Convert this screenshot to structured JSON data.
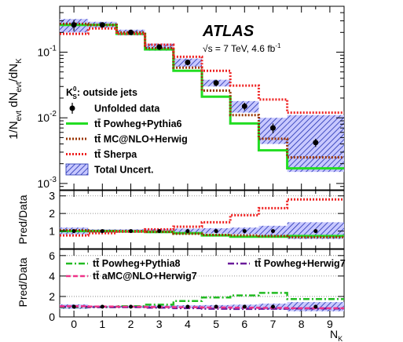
{
  "chart_data": {
    "type": "line",
    "xlabel": "N",
    "xlabel_sub": "K",
    "x_ticks": [
      "0",
      "1",
      "2",
      "3",
      "4",
      "5",
      "6",
      "7",
      "8",
      "9"
    ],
    "xlim": [
      -0.5,
      9.5
    ],
    "bins": [
      [
        -0.5,
        0.5
      ],
      [
        0.5,
        1.5
      ],
      [
        1.5,
        2.5
      ],
      [
        2.5,
        3.5
      ],
      [
        3.5,
        4.5
      ],
      [
        4.5,
        5.5
      ],
      [
        5.5,
        6.5
      ],
      [
        6.5,
        7.5
      ],
      [
        7.5,
        9.5
      ]
    ],
    "atlas_label": "ATLAS",
    "energy_label": "√s = 7 TeV, 4.6 fb",
    "energy_sup": "-1",
    "selection_label": "K",
    "selection_sub": "S",
    "selection_sup": "0",
    "selection_rest": ": outside jets",
    "top": {
      "ylabel": "1/N",
      "ylabel_sub1": "evt",
      "ylabel_mid": " dN",
      "ylabel_sub2": "evt",
      "ylabel_end": "/dN",
      "ylabel_sub3": "K",
      "yscale": "log",
      "ylim": [
        0.0008,
        0.5
      ],
      "ytick_values": [
        0.001,
        0.01,
        0.1
      ],
      "ytick_labels": [
        {
          "base": "10",
          "exp": "-3"
        },
        {
          "base": "10",
          "exp": "-2"
        },
        {
          "base": "10",
          "exp": "-1"
        }
      ],
      "legend": [
        {
          "key": "data",
          "name": "Unfolded data"
        },
        {
          "key": "powheg_pythia6",
          "name": "tt̄ Powheg+Pythia6"
        },
        {
          "key": "mcatnlo_herwig",
          "name": "tt̄ MC@NLO+Herwig"
        },
        {
          "key": "sherpa",
          "name": "tt̄ Sherpa"
        },
        {
          "key": "uncert",
          "name": "Total Uncert."
        }
      ],
      "data_points": [
        {
          "x": 0,
          "y": 0.26,
          "err_lo": 0.05,
          "err_hi": 0.05
        },
        {
          "x": 1,
          "y": 0.26,
          "err_lo": 0.02,
          "err_hi": 0.02
        },
        {
          "x": 2,
          "y": 0.2,
          "err_lo": 0.015,
          "err_hi": 0.015
        },
        {
          "x": 3,
          "y": 0.12,
          "err_lo": 0.012,
          "err_hi": 0.012
        },
        {
          "x": 4,
          "y": 0.07,
          "err_lo": 0.007,
          "err_hi": 0.007
        },
        {
          "x": 5,
          "y": 0.034,
          "err_lo": 0.004,
          "err_hi": 0.004
        },
        {
          "x": 6,
          "y": 0.015,
          "err_lo": 0.002,
          "err_hi": 0.002
        },
        {
          "x": 7,
          "y": 0.007,
          "err_lo": 0.0012,
          "err_hi": 0.0012
        },
        {
          "x": 8.5,
          "y": 0.0042,
          "err_lo": 0.0006,
          "err_hi": 0.0006
        }
      ],
      "uncertainty_band": {
        "lo": [
          0.2,
          0.235,
          0.18,
          0.105,
          0.06,
          0.03,
          0.012,
          0.004,
          0.0015
        ],
        "hi": [
          0.32,
          0.29,
          0.22,
          0.135,
          0.08,
          0.038,
          0.018,
          0.01,
          0.011
        ]
      },
      "series": [
        {
          "key": "powheg_pythia6",
          "name": "tt̄ Powheg+Pythia6",
          "color": "#22dd22",
          "dash": "solid",
          "values": [
            0.26,
            0.26,
            0.19,
            0.11,
            0.052,
            0.021,
            0.0082,
            0.0032,
            0.0017
          ]
        },
        {
          "key": "mcatnlo_herwig",
          "name": "tt̄ MC@NLO+Herwig",
          "color": "#993300",
          "dash": "dotted",
          "values": [
            0.27,
            0.26,
            0.2,
            0.115,
            0.058,
            0.026,
            0.011,
            0.0048,
            0.0025
          ]
        },
        {
          "key": "sherpa",
          "name": "tt̄ Sherpa",
          "color": "#ee2222",
          "dash": "dotted",
          "values": [
            0.19,
            0.23,
            0.19,
            0.13,
            0.085,
            0.052,
            0.031,
            0.019,
            0.012
          ]
        }
      ]
    },
    "ratio1": {
      "ylabel": "Pred/Data",
      "ylim": [
        0,
        3.3
      ],
      "yticks": [
        1,
        2,
        3
      ],
      "dotted_lines": [
        2,
        3
      ],
      "data_points": [
        {
          "x": 0,
          "y": 1
        },
        {
          "x": 1,
          "y": 1
        },
        {
          "x": 2,
          "y": 1
        },
        {
          "x": 3,
          "y": 1
        },
        {
          "x": 4,
          "y": 1
        },
        {
          "x": 5,
          "y": 1
        },
        {
          "x": 6,
          "y": 1
        },
        {
          "x": 7,
          "y": 1
        },
        {
          "x": 8.5,
          "y": 1
        }
      ],
      "uncertainty_band": {
        "lo": [
          0.82,
          0.9,
          0.9,
          0.88,
          0.88,
          0.86,
          0.82,
          0.7,
          0.55
        ],
        "hi": [
          1.2,
          1.1,
          1.1,
          1.12,
          1.14,
          1.16,
          1.2,
          1.3,
          1.5
        ]
      },
      "series": [
        {
          "key": "powheg_pythia6",
          "color": "#22dd22",
          "dash": "solid",
          "values": [
            1.0,
            1.0,
            0.98,
            0.95,
            0.88,
            0.75,
            0.68,
            0.68,
            0.72
          ]
        },
        {
          "key": "mcatnlo_herwig",
          "color": "#993300",
          "dash": "dotted",
          "values": [
            1.04,
            1.0,
            1.0,
            0.96,
            0.85,
            0.78,
            0.75,
            0.72,
            0.65
          ]
        },
        {
          "key": "sherpa",
          "color": "#ee2222",
          "dash": "dotted",
          "values": [
            0.75,
            0.88,
            0.97,
            1.1,
            1.25,
            1.5,
            1.9,
            2.3,
            2.8
          ]
        }
      ]
    },
    "ratio2": {
      "ylabel": "Pred/Data",
      "ylim": [
        0,
        6.6
      ],
      "yticks": [
        0,
        2,
        4,
        6
      ],
      "dotted_lines": [
        2,
        4,
        6
      ],
      "legend": [
        {
          "key": "powheg_pythia8",
          "name": "tt̄ Powheg+Pythia8"
        },
        {
          "key": "powheg_herwig7",
          "name": "tt̄ Powheg+Herwig7"
        },
        {
          "key": "amcatnlo_herwig7",
          "name": "tt̄ aMC@NLO+Herwig7"
        }
      ],
      "data_points": [
        {
          "x": 0,
          "y": 1
        },
        {
          "x": 1,
          "y": 1
        },
        {
          "x": 2,
          "y": 1
        },
        {
          "x": 3,
          "y": 1
        },
        {
          "x": 4,
          "y": 1
        },
        {
          "x": 5,
          "y": 1
        },
        {
          "x": 6,
          "y": 1
        },
        {
          "x": 7,
          "y": 1
        },
        {
          "x": 8.5,
          "y": 1
        }
      ],
      "uncertainty_band": {
        "lo": [
          0.78,
          0.9,
          0.9,
          0.88,
          0.86,
          0.84,
          0.8,
          0.7,
          0.55
        ],
        "hi": [
          1.22,
          1.1,
          1.1,
          1.12,
          1.14,
          1.16,
          1.2,
          1.3,
          1.45
        ]
      },
      "series": [
        {
          "key": "powheg_pythia8",
          "name": "tt̄ Powheg+Pythia8",
          "color": "#22bb22",
          "dash": "dashdot",
          "values": [
            0.95,
            0.96,
            1.05,
            1.2,
            1.55,
            1.9,
            2.1,
            2.35,
            1.75
          ]
        },
        {
          "key": "powheg_herwig7",
          "name": "tt̄ Powheg+Herwig7",
          "color": "#6a1b9a",
          "dash": "dashdot",
          "values": [
            1.0,
            0.95,
            0.95,
            0.9,
            0.85,
            0.8,
            0.78,
            0.8,
            0.82
          ]
        },
        {
          "key": "amcatnlo_herwig7",
          "name": "tt̄ aMC@NLO+Herwig7",
          "color": "#ee3388",
          "dash": "dashed",
          "values": [
            1.05,
            1.02,
            1.0,
            0.97,
            0.95,
            0.92,
            0.9,
            0.88,
            0.85
          ]
        }
      ]
    }
  }
}
